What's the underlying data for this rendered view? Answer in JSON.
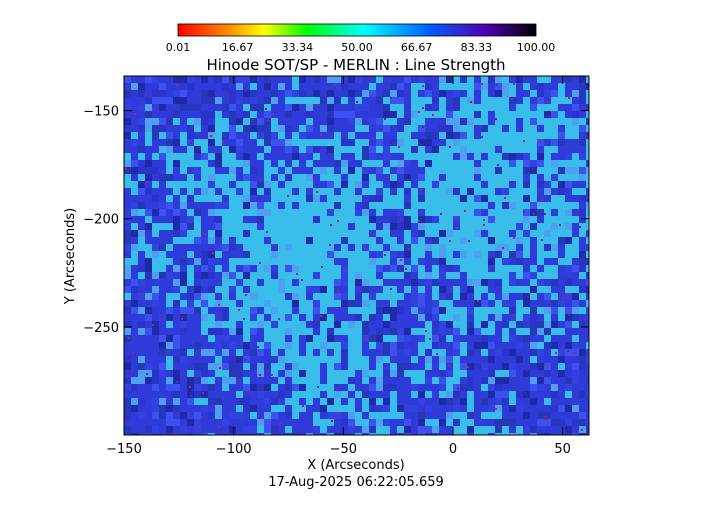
{
  "chart_data": {
    "type": "heatmap",
    "title": "Hinode SOT/SP - MERLIN : Line Strength",
    "xlabel": "X (Arcseconds)",
    "ylabel": "Y (Arcseconds)",
    "xlim": [
      -150,
      62
    ],
    "ylim": [
      -300,
      -134
    ],
    "x_ticks": [
      -150,
      -100,
      -50,
      0,
      50
    ],
    "x_tick_labels": [
      "−150",
      "−100",
      "−50",
      "0",
      "50"
    ],
    "y_ticks": [
      -150,
      -200,
      -250
    ],
    "y_tick_labels": [
      "−150",
      "−200",
      "−250"
    ],
    "colorbar": {
      "min": 0.01,
      "max": 100.0,
      "tick_labels": [
        "0.01",
        "16.67",
        "33.34",
        "50.00",
        "66.67",
        "83.33",
        "100.00"
      ],
      "colors": [
        "#ff0000",
        "#ff8c00",
        "#ffff00",
        "#00ff00",
        "#00ffff",
        "#0060ff",
        "#5000b0",
        "#000000"
      ]
    },
    "map_colors": {
      "background": "#2f3bd8",
      "light": "#39bdea"
    },
    "timestamp": "17-Aug-2025 06:22:05.659"
  }
}
